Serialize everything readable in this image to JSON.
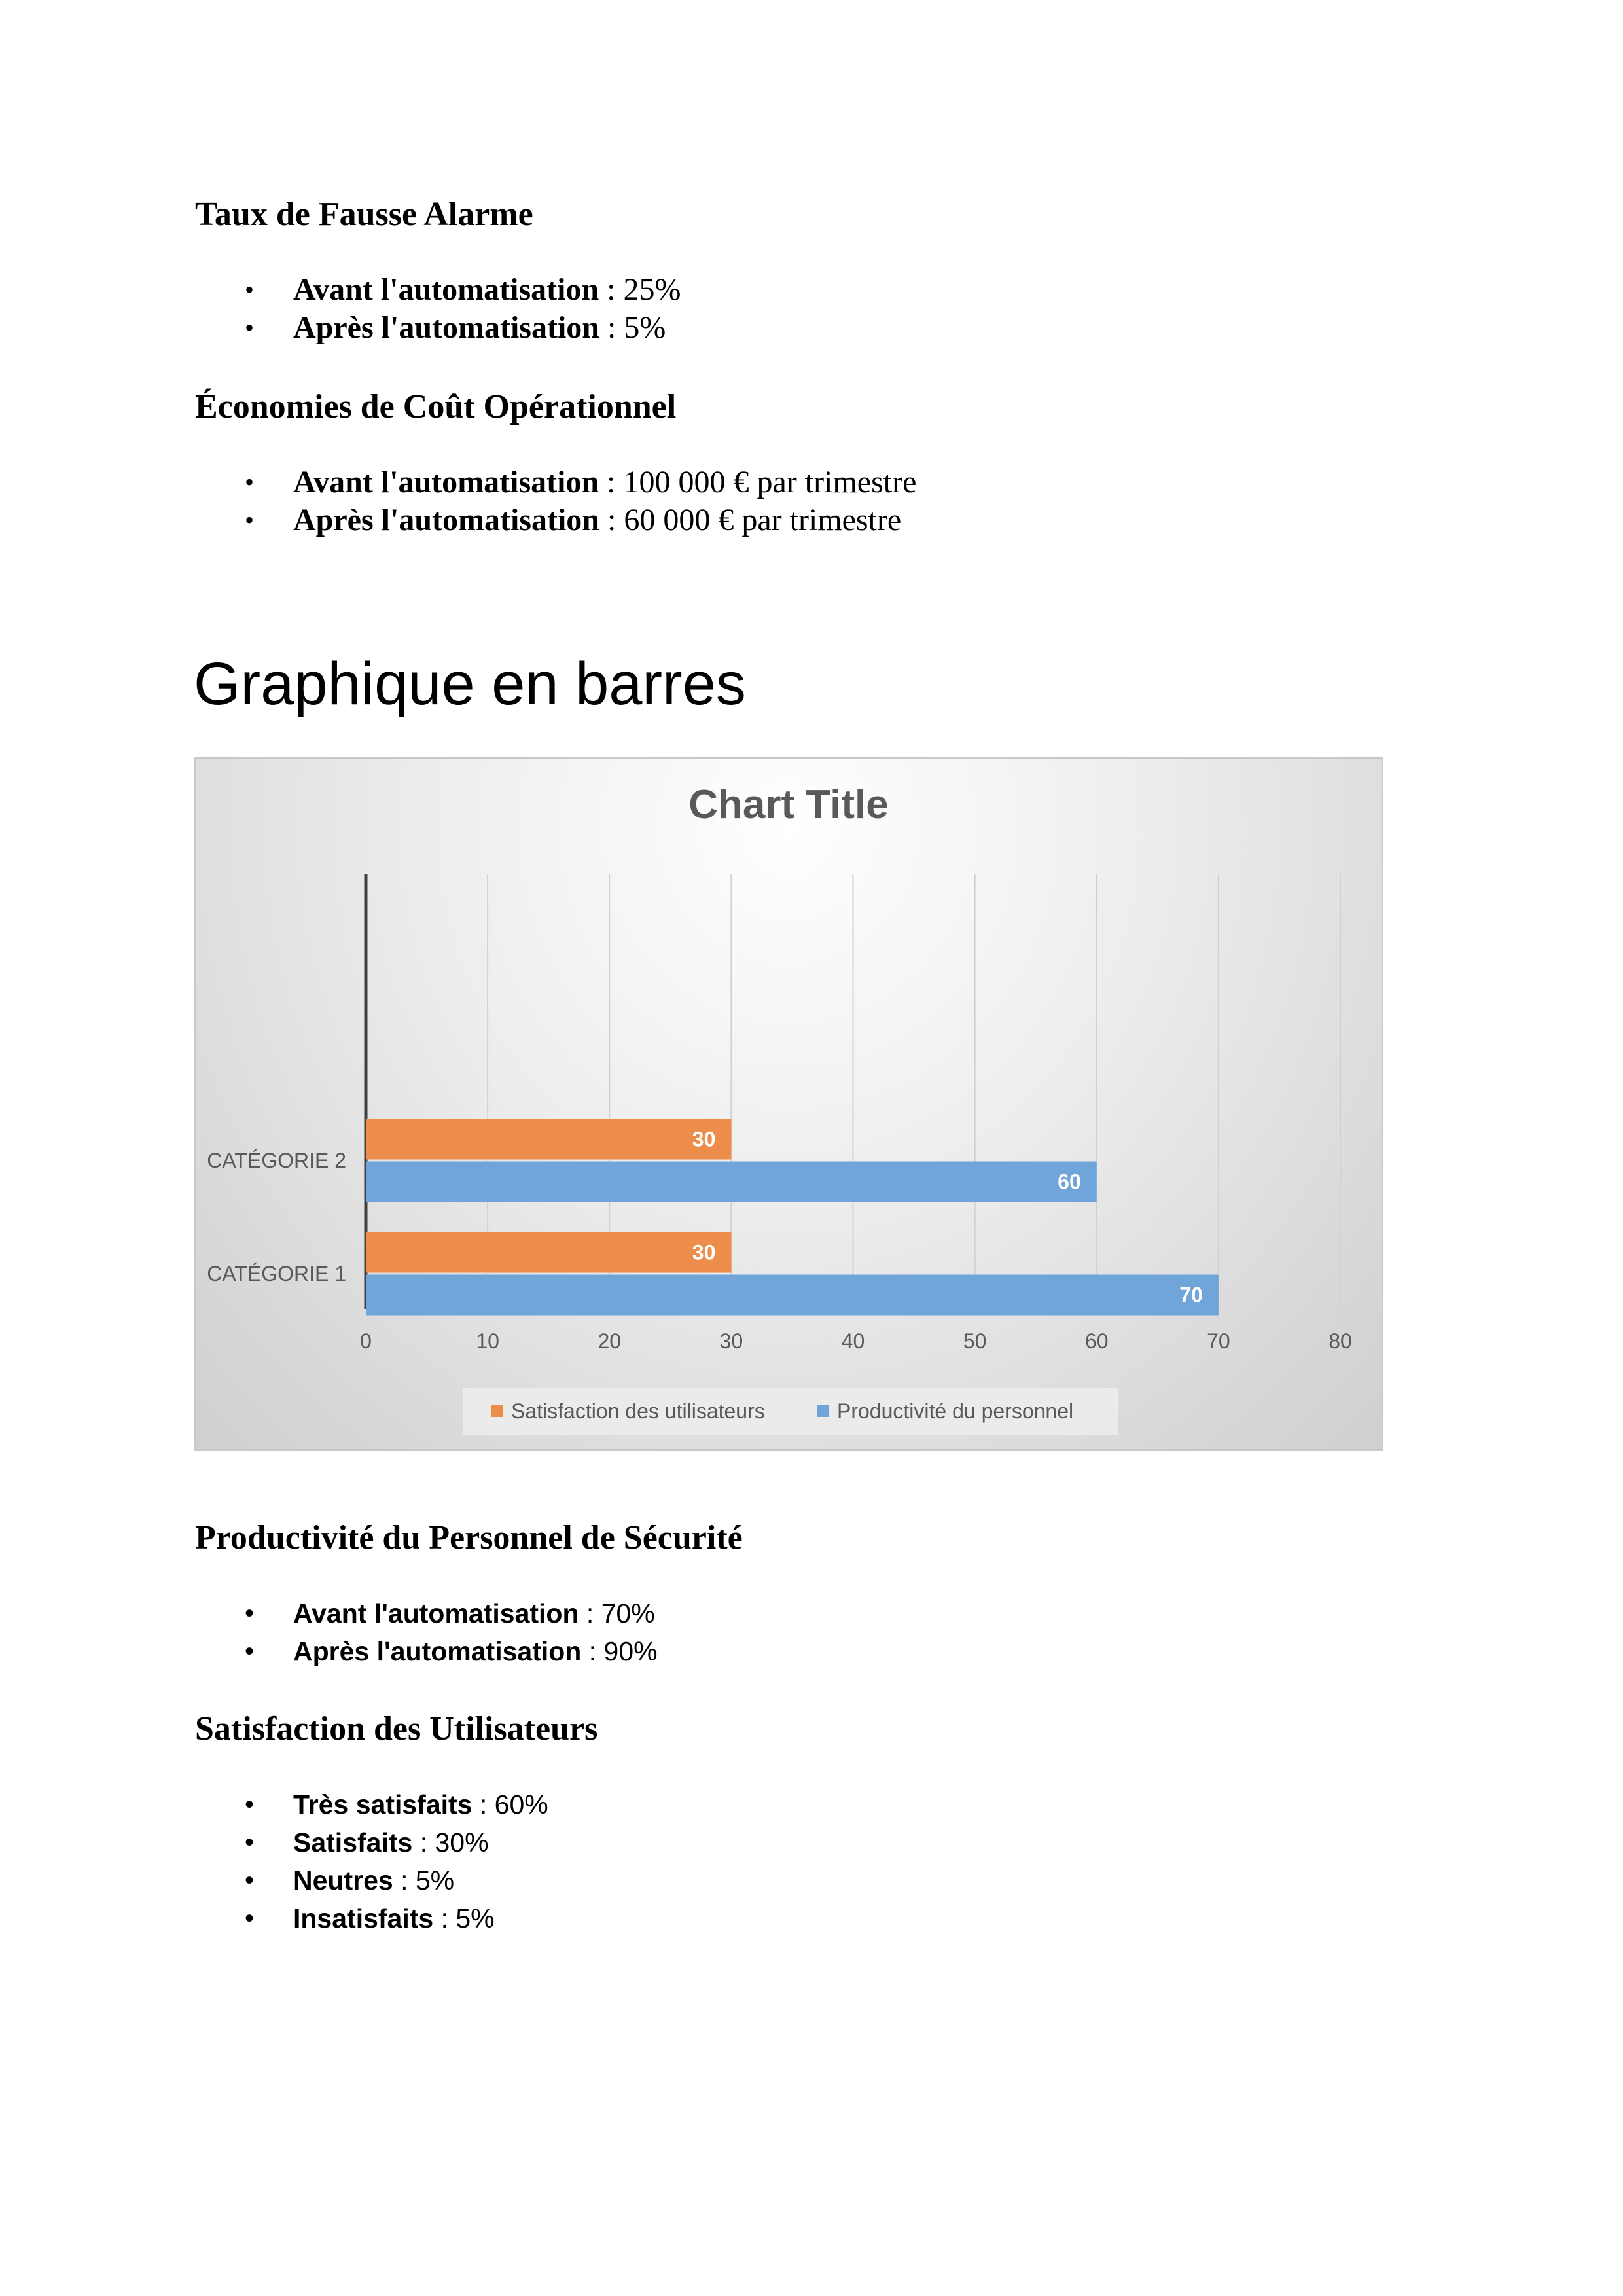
{
  "sections": {
    "fausse_alarme": {
      "title": "Taux de Fausse Alarme",
      "items": [
        {
          "label": "Avant l'automatisation",
          "value": " : 25%"
        },
        {
          "label": "Après l'automatisation",
          "value": " : 5%"
        }
      ]
    },
    "economies": {
      "title": "Économies de Coût Opérationnel",
      "items": [
        {
          "label": "Avant l'automatisation",
          "value": " : 100 000 € par trimestre"
        },
        {
          "label": "Après l'automatisation",
          "value": " : 60 000 € par trimestre"
        }
      ]
    },
    "graphique": {
      "title": "Graphique en barres"
    },
    "productivite": {
      "title": "Productivité du Personnel de Sécurité",
      "items": [
        {
          "label": "Avant l'automatisation",
          "value": " : 70%"
        },
        {
          "label": "Après l'automatisation",
          "value": " : 90%"
        }
      ]
    },
    "satisfaction": {
      "title": "Satisfaction des Utilisateurs",
      "items": [
        {
          "label": "Très satisfaits",
          "value": " : 60%"
        },
        {
          "label": "Satisfaits",
          "value": " : 30%"
        },
        {
          "label": "Neutres",
          "value": " : 5%"
        },
        {
          "label": "Insatisfaits",
          "value": " : 5%"
        }
      ]
    }
  },
  "bullet_glyph": "•",
  "chart_data": {
    "type": "bar",
    "orientation": "horizontal",
    "title": "Chart Title",
    "categories": [
      "CATÉGORIE 1",
      "CATÉGORIE 2"
    ],
    "series": [
      {
        "name": "Satisfaction des utilisateurs",
        "values": [
          30,
          30
        ],
        "color": "#ED8D4C"
      },
      {
        "name": "Productivité du personnel",
        "values": [
          70,
          60
        ],
        "color": "#6FA5D8"
      }
    ],
    "xlim": [
      0,
      80
    ],
    "xticks": [
      0,
      10,
      20,
      30,
      40,
      50,
      60,
      70,
      80
    ],
    "grid": true,
    "data_labels": true,
    "legend_position": "bottom"
  }
}
